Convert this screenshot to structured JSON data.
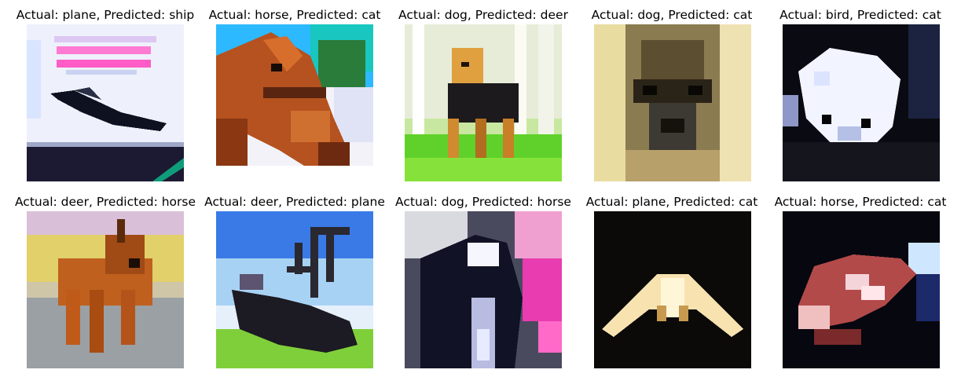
{
  "figure": {
    "cells": [
      {
        "title": "Actual: plane, Predicted: ship",
        "actual": "plane",
        "predicted": "ship",
        "image_name": "plane-image"
      },
      {
        "title": "Actual: horse, Predicted: cat",
        "actual": "horse",
        "predicted": "cat",
        "image_name": "horse-image"
      },
      {
        "title": "Actual: dog, Predicted: deer",
        "actual": "dog",
        "predicted": "deer",
        "image_name": "dog-image"
      },
      {
        "title": "Actual: dog, Predicted: cat",
        "actual": "dog",
        "predicted": "cat",
        "image_name": "dog-image"
      },
      {
        "title": "Actual: bird, Predicted: cat",
        "actual": "bird",
        "predicted": "cat",
        "image_name": "bird-image"
      },
      {
        "title": "Actual: deer, Predicted: horse",
        "actual": "deer",
        "predicted": "horse",
        "image_name": "deer-image"
      },
      {
        "title": "Actual: deer, Predicted: plane",
        "actual": "deer",
        "predicted": "plane",
        "image_name": "deer-image"
      },
      {
        "title": "Actual: dog, Predicted: horse",
        "actual": "dog",
        "predicted": "horse",
        "image_name": "dog-image"
      },
      {
        "title": "Actual: plane, Predicted: cat",
        "actual": "plane",
        "predicted": "cat",
        "image_name": "plane-image"
      },
      {
        "title": "Actual: horse, Predicted: cat",
        "actual": "horse",
        "predicted": "cat",
        "image_name": "horse-image"
      }
    ]
  }
}
